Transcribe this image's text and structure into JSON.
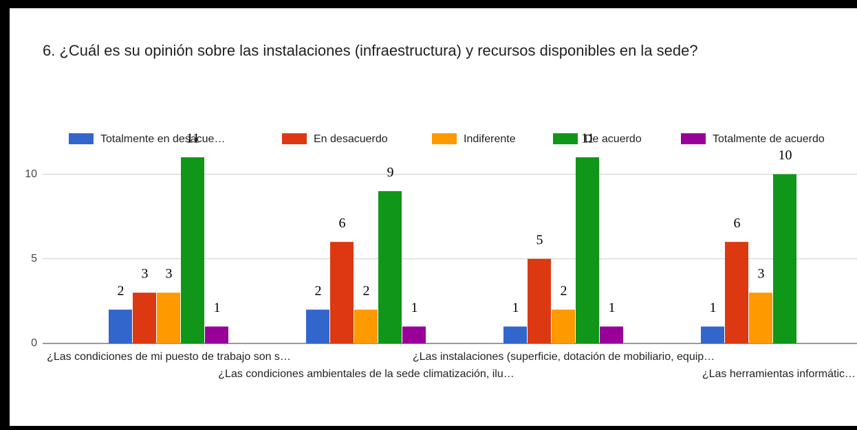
{
  "chart_data": {
    "type": "bar",
    "title": "6. ¿Cuál es su opinión sobre las instalaciones (infraestructura) y recursos disponibles en la sede?",
    "categories": [
      "¿Las condiciones de mi puesto de trabajo son s…",
      "¿Las condiciones ambientales de la sede climatización, ilu…",
      "¿Las instalaciones (superficie, dotación de mobiliario, equip…",
      "¿Las herramientas informátic…"
    ],
    "series": [
      {
        "name": "Totalmente en desacue…",
        "color": "#3366cc",
        "values": [
          2,
          2,
          1,
          1
        ]
      },
      {
        "name": "En desacuerdo",
        "color": "#dc3912",
        "values": [
          3,
          6,
          5,
          6
        ]
      },
      {
        "name": "Indiferente",
        "color": "#ff9900",
        "values": [
          3,
          2,
          2,
          3
        ]
      },
      {
        "name": "De acuerdo",
        "color": "#109618",
        "values": [
          11,
          9,
          11,
          10
        ]
      },
      {
        "name": "Totalmente de acuerdo",
        "color": "#990099",
        "values": [
          1,
          1,
          1,
          null
        ]
      }
    ],
    "ylim": [
      0,
      12.5
    ],
    "yticks": [
      0,
      5,
      10
    ],
    "grid": true,
    "legend": "top"
  }
}
